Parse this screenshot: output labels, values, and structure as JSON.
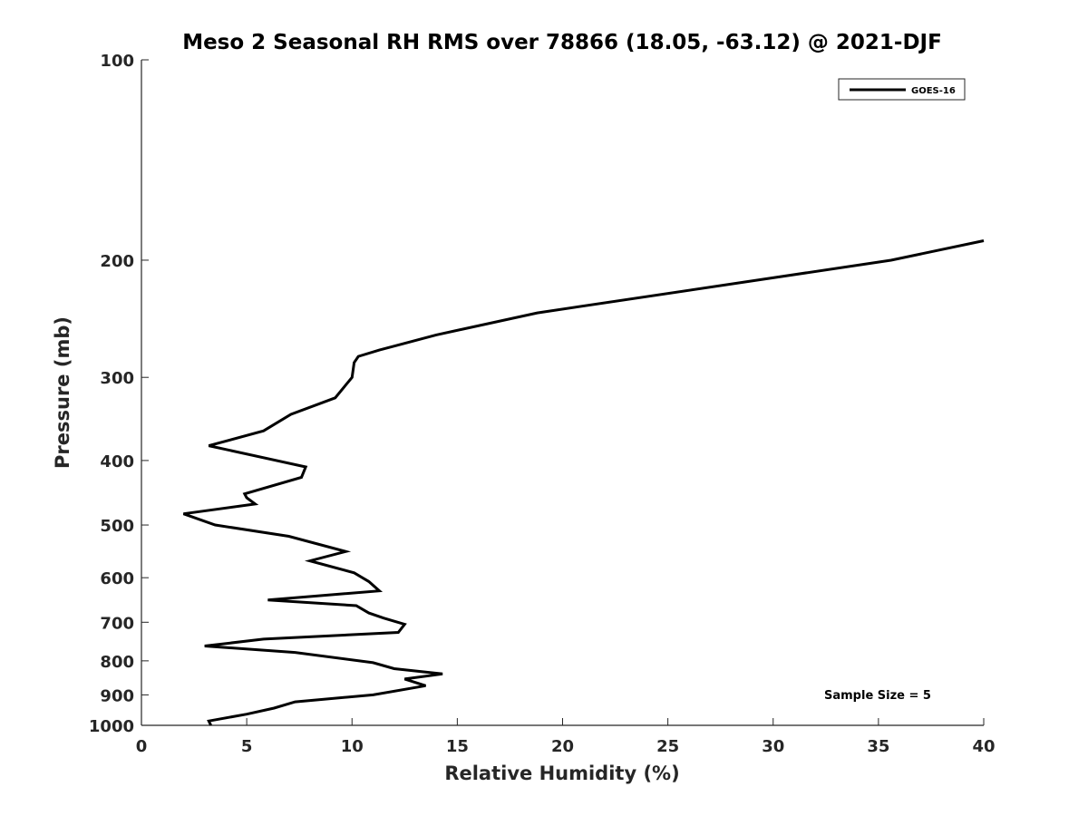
{
  "chart_data": {
    "type": "line",
    "title": "Meso 2 Seasonal RH RMS over 78866 (18.05, -63.12) @ 2021-DJF",
    "xlabel": "Relative Humidity (%)",
    "ylabel": "Pressure (mb)",
    "xlim": [
      0,
      40
    ],
    "ylim": [
      100,
      1000
    ],
    "yscale": "log",
    "y_reversed": true,
    "x_ticks": [
      "0",
      "5",
      "10",
      "15",
      "20",
      "25",
      "30",
      "35",
      "40"
    ],
    "y_ticks": [
      "100",
      "200",
      "300",
      "400",
      "500",
      "600",
      "700",
      "800",
      "900",
      "1000"
    ],
    "grid": false,
    "legend_position": "top-right",
    "series": [
      {
        "name": "GOES-16",
        "color": "#000000",
        "points": [
          [
            3.3,
            1000
          ],
          [
            3.2,
            985
          ],
          [
            5.0,
            962
          ],
          [
            6.3,
            942
          ],
          [
            7.3,
            922
          ],
          [
            11.0,
            900
          ],
          [
            13.5,
            872
          ],
          [
            12.5,
            852
          ],
          [
            14.3,
            837
          ],
          [
            12.0,
            822
          ],
          [
            11.0,
            805
          ],
          [
            7.3,
            777
          ],
          [
            3.0,
            760
          ],
          [
            5.8,
            742
          ],
          [
            12.2,
            725
          ],
          [
            12.5,
            705
          ],
          [
            11.5,
            690
          ],
          [
            10.8,
            678
          ],
          [
            10.2,
            661
          ],
          [
            6.0,
            648
          ],
          [
            11.3,
            628
          ],
          [
            10.8,
            608
          ],
          [
            10.1,
            590
          ],
          [
            8.0,
            566
          ],
          [
            9.7,
            548
          ],
          [
            7.0,
            520
          ],
          [
            3.5,
            500
          ],
          [
            2.0,
            481
          ],
          [
            5.4,
            465
          ],
          [
            5.0,
            455
          ],
          [
            4.9,
            449
          ],
          [
            7.6,
            424
          ],
          [
            7.8,
            409
          ],
          [
            3.2,
            380
          ],
          [
            5.8,
            361
          ],
          [
            7.1,
            341
          ],
          [
            9.2,
            322
          ],
          [
            10.0,
            300
          ],
          [
            10.1,
            285
          ],
          [
            10.3,
            279
          ],
          [
            11.3,
            273
          ],
          [
            14.0,
            259
          ],
          [
            18.8,
            240
          ],
          [
            35.6,
            200
          ],
          [
            40.0,
            187
          ]
        ]
      }
    ],
    "annotations": [
      "Sample Size = 5"
    ]
  }
}
